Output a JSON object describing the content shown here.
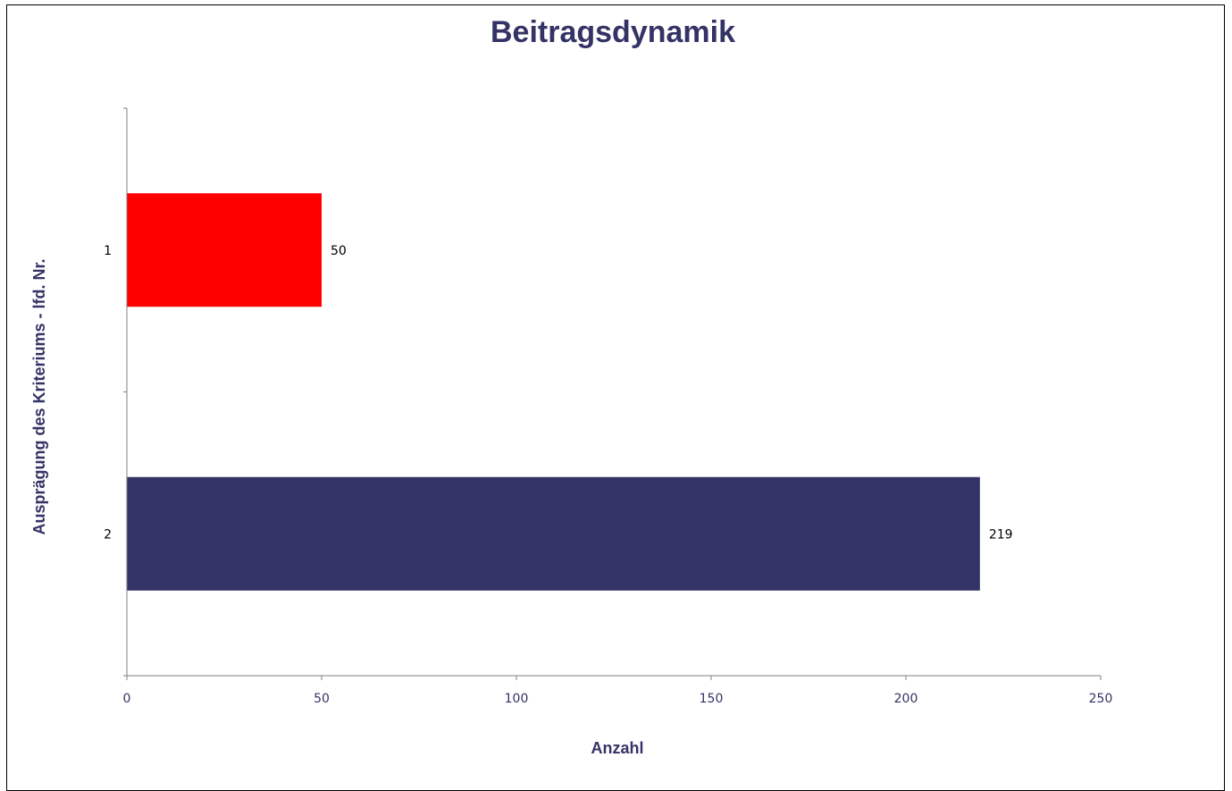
{
  "chart_data": {
    "type": "bar",
    "orientation": "horizontal",
    "title": "Beitragsdynamik",
    "xlabel": "Anzahl",
    "ylabel": "Ausprägung des Kriteriums - lfd. Nr.",
    "categories": [
      "1",
      "2"
    ],
    "values": [
      50,
      219
    ],
    "data_labels": [
      "50",
      "219"
    ],
    "bar_colors": [
      "#ff0000",
      "#333366"
    ],
    "xlim": [
      0,
      250
    ],
    "xticks": [
      "0",
      "50",
      "100",
      "150",
      "200",
      "250"
    ],
    "grid": false,
    "legend": "none"
  },
  "colors": {
    "title": "#333366",
    "axis_title": "#333366",
    "x_tick": "#333366",
    "y_tick": "#000000",
    "axis_line": "#808080"
  }
}
